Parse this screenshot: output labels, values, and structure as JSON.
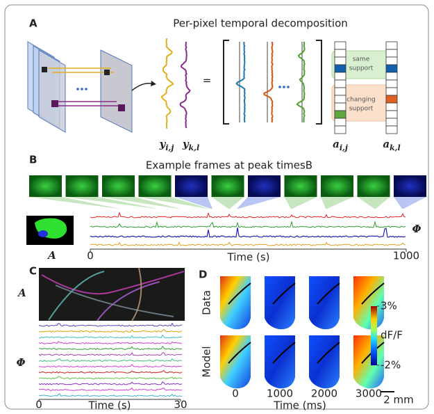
{
  "figure": {
    "panel_a": {
      "label": "A",
      "title": "Per-pixel temporal decomposition",
      "equals": "=",
      "y_symbols": [
        {
          "base": "y",
          "sub": "i,j"
        },
        {
          "base": "y",
          "sub": "k,l"
        }
      ],
      "a_symbols": [
        {
          "base": "a",
          "sub": "i,j"
        },
        {
          "base": "a",
          "sub": "k,l"
        }
      ],
      "same_support": [
        "same",
        "support"
      ],
      "changing_support": [
        "changing",
        "support"
      ]
    },
    "panel_b": {
      "label": "B",
      "title": "Example frames at peak timesB",
      "image_label": "A",
      "trace_label": "Φ",
      "xlabel": "Time (s)",
      "xlim": [
        0,
        1000
      ],
      "xticks": [
        0,
        1000
      ]
    },
    "panel_c": {
      "label": "C",
      "image_label": "A",
      "trace_label": "Φ",
      "xlabel": "Time (s)",
      "xlim": [
        0,
        30
      ],
      "xticks": [
        0,
        30
      ]
    },
    "panel_d": {
      "label": "D",
      "rows": [
        "Data",
        "Model"
      ],
      "columns": [
        0,
        1000,
        2000,
        3000
      ],
      "xlabel": "Time (ms)",
      "colorbar": {
        "label": "dF/F",
        "lim": [
          -2,
          3
        ],
        "ticks": [
          {
            "value": 3,
            "label": "3%"
          },
          {
            "value": -2,
            "label": "-2%"
          }
        ]
      },
      "scale_bar": "2 mm"
    }
  }
}
